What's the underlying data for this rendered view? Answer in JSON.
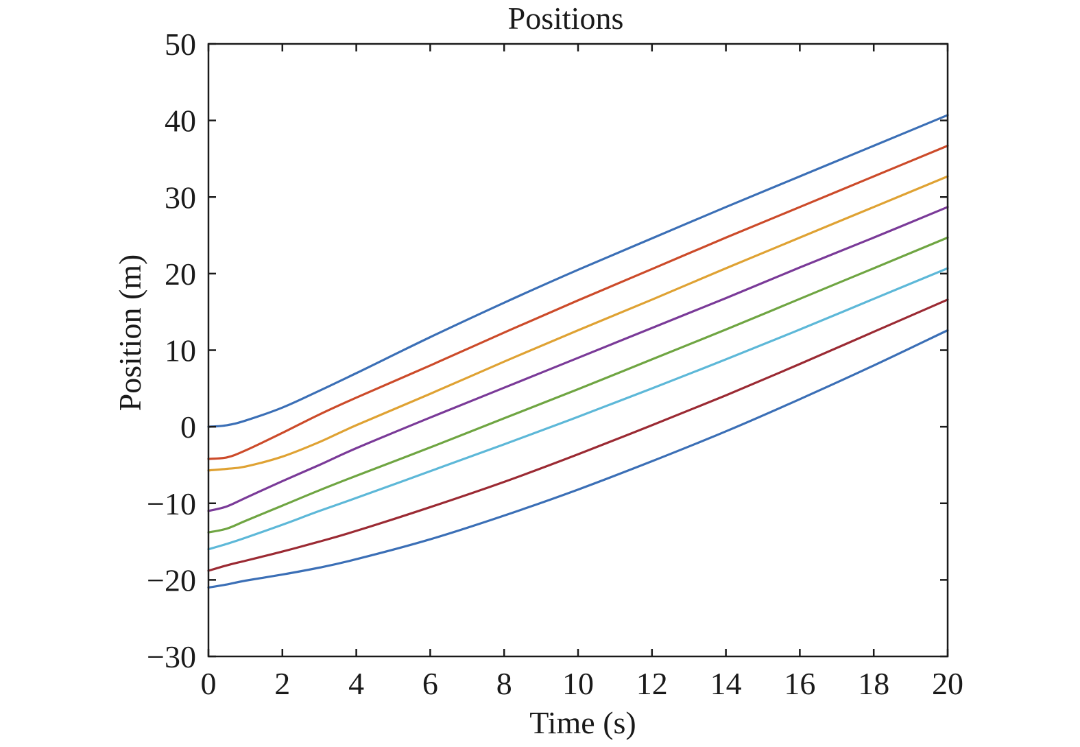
{
  "chart_data": {
    "type": "line",
    "title": "Positions",
    "xlabel": "Time (s)",
    "ylabel": "Position (m)",
    "xlim": [
      0,
      20
    ],
    "ylim": [
      -30,
      50
    ],
    "x_ticks": [
      0,
      2,
      4,
      6,
      8,
      10,
      12,
      14,
      16,
      18,
      20
    ],
    "x_tick_labels": [
      "0",
      "2",
      "4",
      "6",
      "8",
      "10",
      "12",
      "14",
      "16",
      "18",
      "20"
    ],
    "y_ticks": [
      50,
      40,
      30,
      20,
      10,
      0,
      -10,
      -20,
      -30
    ],
    "y_tick_labels": [
      "50",
      "40",
      "30",
      "20",
      "10",
      "0",
      "−10",
      "−20",
      "−30"
    ],
    "grid": false,
    "legend": "none",
    "x": [
      0,
      0.5,
      1,
      2,
      3,
      4,
      6,
      8,
      10,
      12,
      14,
      16,
      18,
      20
    ],
    "series": [
      {
        "color": "#3b6fb6",
        "values": [
          0.0,
          0.2,
          0.8,
          2.5,
          4.7,
          7.0,
          11.7,
          16.2,
          20.5,
          24.6,
          28.7,
          32.7,
          36.7,
          40.7
        ]
      },
      {
        "color": "#cc4b2a",
        "values": [
          -4.2,
          -4.0,
          -3.1,
          -0.8,
          1.6,
          3.8,
          8.0,
          12.3,
          16.5,
          20.6,
          24.7,
          28.7,
          32.7,
          36.7
        ]
      },
      {
        "color": "#dfa233",
        "values": [
          -5.7,
          -5.5,
          -5.2,
          -3.9,
          -2.0,
          0.2,
          4.3,
          8.5,
          12.6,
          16.6,
          20.7,
          24.7,
          28.7,
          32.7
        ]
      },
      {
        "color": "#7a3a98",
        "values": [
          -11.0,
          -10.4,
          -9.3,
          -7.1,
          -5.0,
          -2.8,
          1.2,
          5.1,
          9.0,
          12.9,
          16.8,
          20.8,
          24.7,
          28.7
        ]
      },
      {
        "color": "#6fa542",
        "values": [
          -13.8,
          -13.3,
          -12.3,
          -10.3,
          -8.3,
          -6.4,
          -2.7,
          1.1,
          4.9,
          8.8,
          12.7,
          16.7,
          20.7,
          24.7
        ]
      },
      {
        "color": "#5db8d8",
        "values": [
          -16.0,
          -15.3,
          -14.5,
          -12.8,
          -11.0,
          -9.3,
          -5.8,
          -2.3,
          1.3,
          5.0,
          8.8,
          12.7,
          16.7,
          20.7
        ]
      },
      {
        "color": "#9b2a33",
        "values": [
          -18.8,
          -18.1,
          -17.5,
          -16.3,
          -15.0,
          -13.6,
          -10.5,
          -7.2,
          -3.6,
          0.2,
          4.1,
          8.2,
          12.4,
          16.6
        ]
      },
      {
        "color": "#3b6fb6",
        "values": [
          -21.0,
          -20.6,
          -20.1,
          -19.3,
          -18.4,
          -17.3,
          -14.7,
          -11.6,
          -8.2,
          -4.5,
          -0.6,
          3.6,
          8.0,
          12.6
        ]
      }
    ]
  }
}
